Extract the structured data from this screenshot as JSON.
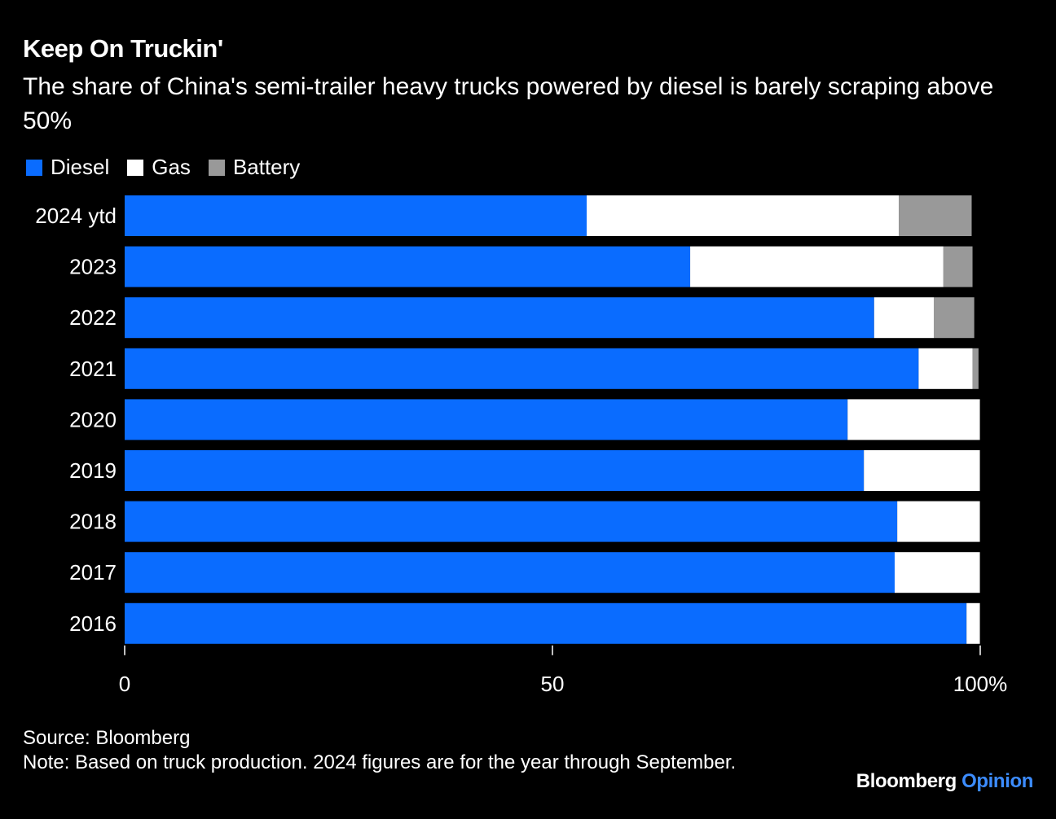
{
  "header": {
    "title": "Keep On Truckin'",
    "subtitle": "The share of China's semi-trailer heavy trucks powered by diesel is barely scraping above 50%"
  },
  "colors": {
    "diesel": "#0a6cff",
    "gas": "#ffffff",
    "battery": "#999999",
    "axis": "#ffffff",
    "background": "#000000"
  },
  "legend": [
    {
      "label": "Diesel",
      "color": "#0a6cff"
    },
    {
      "label": "Gas",
      "color": "#ffffff"
    },
    {
      "label": "Battery",
      "color": "#999999"
    }
  ],
  "chart_data": {
    "type": "bar",
    "orientation": "horizontal",
    "stacked": true,
    "categories": [
      "2024 ytd",
      "2023",
      "2022",
      "2021",
      "2020",
      "2019",
      "2018",
      "2017",
      "2016"
    ],
    "series": [
      {
        "name": "Diesel",
        "values": [
          54,
          66.1,
          87.6,
          92.8,
          84.5,
          86.4,
          90.3,
          90,
          98.4
        ]
      },
      {
        "name": "Gas",
        "values": [
          36.5,
          29.6,
          7,
          6.3,
          15.4,
          13.5,
          9.6,
          9.9,
          1.5
        ]
      },
      {
        "name": "Battery",
        "values": [
          8.5,
          3.4,
          4.7,
          0.7,
          0.1,
          0.1,
          0.1,
          0.1,
          0.1
        ]
      }
    ],
    "xlim": [
      0,
      100
    ],
    "xticks": [
      {
        "value": 0,
        "label": "0"
      },
      {
        "value": 50,
        "label": "50"
      },
      {
        "value": 100,
        "label": "100%"
      }
    ]
  },
  "footer": {
    "source": "Source: Bloomberg",
    "note": "Note: Based on truck production. 2024 figures are for the year through September."
  },
  "brand": {
    "name": "Bloomberg",
    "suffix": "Opinion"
  }
}
